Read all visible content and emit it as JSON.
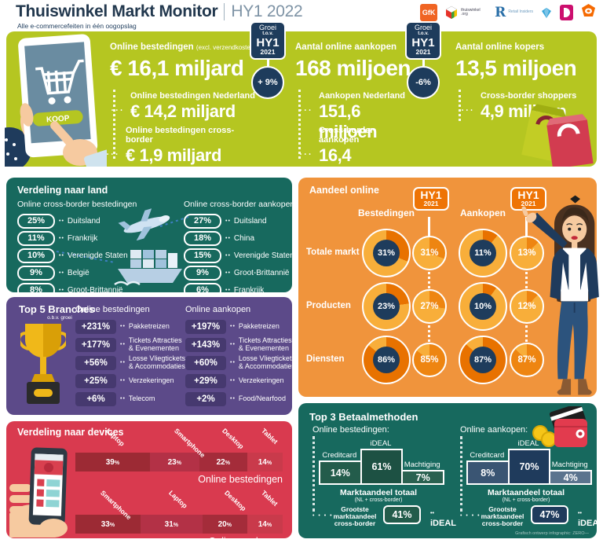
{
  "header": {
    "title": "Thuiswinkel Markt Monitor",
    "edition": "HY1 2022",
    "subtitle": "Alle e-commercefeiten in één oogopslag",
    "logos": {
      "gfk": "GfK",
      "thuiswinkel": "thuiswinkel .org",
      "retail_initial": "R",
      "retail_name": "Retail Insiders"
    }
  },
  "growth_badge": {
    "line1": "Groei",
    "line2": "t.o.v.",
    "period": "HY1",
    "year": "2021"
  },
  "tablet": {
    "button": "KOOP"
  },
  "kpis": {
    "bestedingen": {
      "label": "Online bestedingen",
      "note": "(excl. verzendkosten)",
      "value": "€ 16,1 miljard",
      "growth": "+ 9%",
      "subs": [
        {
          "label": "Online bestedingen Nederland",
          "value": "€ 14,2 miljard"
        },
        {
          "label": "Online bestedingen cross-border",
          "value": "€ 1,9 miljard"
        }
      ]
    },
    "aankopen": {
      "label": "Aantal online aankopen",
      "value": "168 miljoen",
      "growth": "-6%",
      "subs": [
        {
          "label": "Aankopen Nederland",
          "value": "151,6 miljoen"
        },
        {
          "label": "Cross-border aankopen",
          "value": "16,4 miljoen"
        }
      ]
    },
    "kopers": {
      "label": "Aantal online kopers",
      "value": "13,5 miljoen",
      "subs": [
        {
          "label": "Cross-border shoppers",
          "value": "4,9 miljoen"
        }
      ]
    }
  },
  "land": {
    "title": "Verdeling naar land",
    "left": {
      "header": "Online cross-border bestedingen",
      "rows": [
        {
          "pct": "25%",
          "country": "Duitsland"
        },
        {
          "pct": "11%",
          "country": "Frankrijk"
        },
        {
          "pct": "10%",
          "country": "Verenigde Staten"
        },
        {
          "pct": "9%",
          "country": "België"
        },
        {
          "pct": "8%",
          "country": "Groot-Brittannië"
        }
      ]
    },
    "right": {
      "header": "Online cross-border aankopen",
      "rows": [
        {
          "pct": "27%",
          "country": "Duitsland"
        },
        {
          "pct": "18%",
          "country": "China"
        },
        {
          "pct": "15%",
          "country": "Verenigde Staten"
        },
        {
          "pct": "9%",
          "country": "Groot-Brittannië"
        },
        {
          "pct": "6%",
          "country": "Frankrijk"
        }
      ]
    }
  },
  "branches": {
    "title": "Top 5 Branches",
    "subtitle": "o.b.v. groei",
    "left": {
      "header": "Online bestedingen",
      "rows": [
        {
          "pct": "+231%",
          "label": "Pakketreizen"
        },
        {
          "pct": "+177%",
          "label": "Tickets Attracties & Evenementen"
        },
        {
          "pct": "+56%",
          "label": "Losse Vliegtickets & Accommodaties"
        },
        {
          "pct": "+25%",
          "label": "Verzekeringen"
        },
        {
          "pct": "+6%",
          "label": "Telecom"
        }
      ]
    },
    "right": {
      "header": "Online aankopen",
      "rows": [
        {
          "pct": "+197%",
          "label": "Pakketreizen"
        },
        {
          "pct": "+143%",
          "label": "Tickets Attracties & Evenementen"
        },
        {
          "pct": "+60%",
          "label": "Losse Vliegtickets & Accommodaties"
        },
        {
          "pct": "+29%",
          "label": "Verzekeringen"
        },
        {
          "pct": "+2%",
          "label": "Food/Nearfood"
        }
      ]
    }
  },
  "devices": {
    "title": "Verdeling naar devices",
    "rows": [
      {
        "caption": "Online bestedingen",
        "segments": [
          {
            "label": "Laptop",
            "pct": 39
          },
          {
            "label": "Smartphone",
            "pct": 23
          },
          {
            "label": "Desktop",
            "pct": 22
          },
          {
            "label": "Tablet",
            "pct": 14
          }
        ]
      },
      {
        "caption": "Online aankopen",
        "segments": [
          {
            "label": "Smartphone",
            "pct": 33
          },
          {
            "label": "Laptop",
            "pct": 31
          },
          {
            "label": "Desktop",
            "pct": 20
          },
          {
            "label": "Tablet",
            "pct": 14
          }
        ]
      }
    ]
  },
  "aandeel": {
    "title": "Aandeel online",
    "badge": {
      "period": "HY1",
      "year": "2021"
    },
    "columns": [
      "Bestedingen",
      "Aankopen"
    ],
    "rows": [
      {
        "label": "Totale markt",
        "values": [
          31,
          31,
          11,
          13
        ]
      },
      {
        "label": "Producten",
        "values": [
          23,
          27,
          10,
          12
        ]
      },
      {
        "label": "Diensten",
        "values": [
          86,
          85,
          87,
          87
        ]
      }
    ]
  },
  "payments": {
    "title": "Top 3 Betaalmethoden",
    "left": {
      "header": "Online bestedingen:",
      "bars": [
        {
          "label": "Creditcard",
          "pct": 14
        },
        {
          "label": "iDEAL",
          "pct": 61
        },
        {
          "label": "Machtiging",
          "pct": 7
        }
      ],
      "total_label": "Marktaandeel totaal",
      "total_note": "(NL + cross-border)",
      "cross": {
        "label": "Grootste marktaandeel cross-border",
        "pct": "41%",
        "method": "iDEAL"
      }
    },
    "right": {
      "header": "Online aankopen:",
      "bars": [
        {
          "label": "Creditcard",
          "pct": 8
        },
        {
          "label": "iDEAL",
          "pct": 70
        },
        {
          "label": "Machtiging",
          "pct": 4
        }
      ],
      "total_label": "Marktaandeel totaal",
      "total_note": "(NL + cross-border)",
      "cross": {
        "label": "Grootste marktaandeel cross-border",
        "pct": "47%",
        "method": "iDEAL"
      }
    }
  },
  "meta": {
    "credit": "Grafisch ontwerp infographic: ZERO—"
  },
  "colors": {
    "lime": "#b5c621",
    "navy": "#1e3c5c",
    "teal": "#17695e",
    "orange": "#f0943c",
    "orange_light": "#f8ae3a",
    "orange_dark": "#e87200",
    "purple": "#5c4a89",
    "purple_dark": "#46396f",
    "red": "#d93a4f"
  },
  "chart_data": [
    {
      "type": "table",
      "title": "Aandeel online (%)",
      "columns": [
        "",
        "Bestedingen HY1 2022",
        "Bestedingen HY1 2021",
        "Aankopen HY1 2022",
        "Aankopen HY1 2021"
      ],
      "rows": [
        [
          "Totale markt",
          31,
          31,
          11,
          13
        ],
        [
          "Producten",
          23,
          27,
          10,
          12
        ],
        [
          "Diensten",
          86,
          85,
          87,
          87
        ]
      ]
    },
    {
      "type": "table",
      "title": "Groei t.o.v. HY1 2021",
      "columns": [
        "KPI",
        "Groei"
      ],
      "rows": [
        [
          "Online bestedingen",
          "+9%"
        ],
        [
          "Aantal online aankopen",
          "-6%"
        ]
      ]
    },
    {
      "type": "bar",
      "title": "Online cross-border bestedingen naar land",
      "unit": "%",
      "categories": [
        "Duitsland",
        "Frankrijk",
        "Verenigde Staten",
        "België",
        "Groot-Brittannië"
      ],
      "values": [
        25,
        11,
        10,
        9,
        8
      ]
    },
    {
      "type": "bar",
      "title": "Online cross-border aankopen naar land",
      "unit": "%",
      "categories": [
        "Duitsland",
        "China",
        "Verenigde Staten",
        "Groot-Brittannië",
        "Frankrijk"
      ],
      "values": [
        27,
        18,
        15,
        9,
        6
      ]
    },
    {
      "type": "bar",
      "title": "Top 5 Branches o.b.v. groei — Online bestedingen",
      "unit": "%",
      "categories": [
        "Pakketreizen",
        "Tickets Attracties & Evenementen",
        "Losse Vliegtickets & Accommodaties",
        "Verzekeringen",
        "Telecom"
      ],
      "values": [
        231,
        177,
        56,
        25,
        6
      ]
    },
    {
      "type": "bar",
      "title": "Top 5 Branches o.b.v. groei — Online aankopen",
      "unit": "%",
      "categories": [
        "Pakketreizen",
        "Tickets Attracties & Evenementen",
        "Losse Vliegtickets & Accommodaties",
        "Verzekeringen",
        "Food/Nearfood"
      ],
      "values": [
        197,
        143,
        60,
        29,
        2
      ]
    },
    {
      "type": "bar",
      "title": "Verdeling naar devices — Online bestedingen",
      "unit": "%",
      "categories": [
        "Laptop",
        "Smartphone",
        "Desktop",
        "Tablet"
      ],
      "values": [
        39,
        23,
        22,
        14
      ]
    },
    {
      "type": "bar",
      "title": "Verdeling naar devices — Online aankopen",
      "unit": "%",
      "categories": [
        "Smartphone",
        "Laptop",
        "Desktop",
        "Tablet"
      ],
      "values": [
        33,
        31,
        20,
        14
      ]
    },
    {
      "type": "bar",
      "title": "Top 3 Betaalmethoden marktaandeel totaal — Online bestedingen",
      "unit": "%",
      "categories": [
        "Creditcard",
        "iDEAL",
        "Machtiging"
      ],
      "values": [
        14,
        61,
        7
      ]
    },
    {
      "type": "bar",
      "title": "Top 3 Betaalmethoden marktaandeel totaal — Online aankopen",
      "unit": "%",
      "categories": [
        "Creditcard",
        "iDEAL",
        "Machtiging"
      ],
      "values": [
        8,
        70,
        4
      ]
    },
    {
      "type": "bar",
      "title": "Grootste marktaandeel cross-border (iDEAL)",
      "unit": "%",
      "categories": [
        "Online bestedingen",
        "Online aankopen"
      ],
      "values": [
        41,
        47
      ]
    },
    {
      "type": "bar",
      "title": "Kerncijfers HY1 2022",
      "categories": [
        "Online bestedingen (€ mld)",
        "Online bestedingen Nederland (€ mld)",
        "Online bestedingen cross-border (€ mld)",
        "Aantal online aankopen (mln)",
        "Aankopen Nederland (mln)",
        "Cross-border aankopen (mln)",
        "Aantal online kopers (mln)",
        "Cross-border shoppers (mln)"
      ],
      "values": [
        16.1,
        14.2,
        1.9,
        168,
        151.6,
        16.4,
        13.5,
        4.9
      ]
    }
  ]
}
